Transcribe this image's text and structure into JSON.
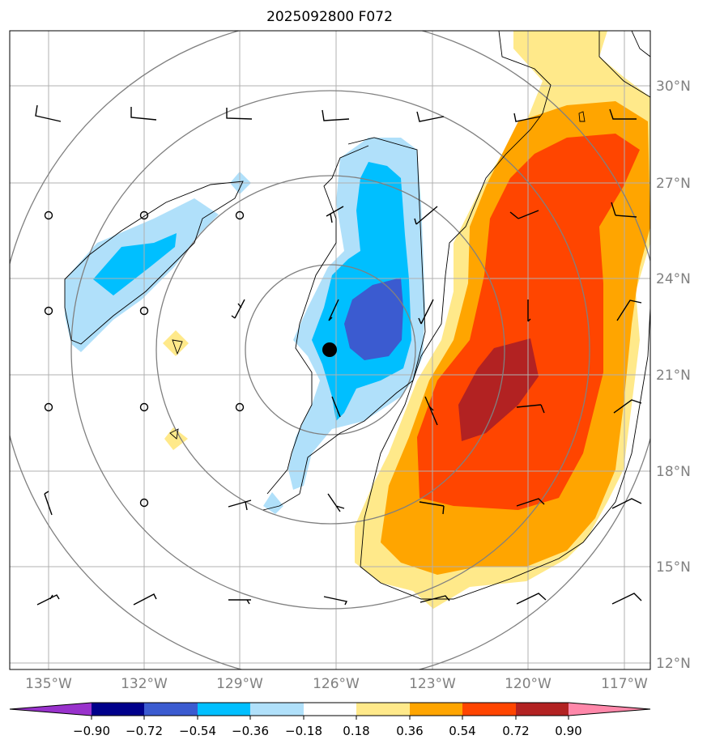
{
  "title": "2025092800 F072",
  "map": {
    "lon_labels": [
      "135°W",
      "132°W",
      "129°W",
      "126°W",
      "123°W",
      "120°W",
      "117°W"
    ],
    "lat_labels": [
      "30°N",
      "27°N",
      "24°N",
      "21°N",
      "18°N",
      "15°N",
      "12°N"
    ],
    "lon_values": [
      -135,
      -132,
      -129,
      -126,
      -123,
      -120,
      -117
    ],
    "lat_values": [
      30,
      27,
      24,
      21,
      18,
      15,
      12
    ],
    "storm_center": {
      "lon": -126.3,
      "lat": 21.8
    },
    "range_rings": 4
  },
  "colorbar": {
    "ticks": [
      "−0.90",
      "−0.72",
      "−0.54",
      "−0.36",
      "−0.18",
      "0.18",
      "0.36",
      "0.54",
      "0.72",
      "0.90"
    ],
    "colors": [
      "#9932cc",
      "#00008b",
      "#3b5bd0",
      "#00bfff",
      "#b0e0fa",
      "#ffffff",
      "#ffe98a",
      "#ffa500",
      "#ff4500",
      "#b22222",
      "#ff88aa"
    ],
    "extend": "both"
  },
  "colors": {
    "grid": "#b0b0b0",
    "ring": "#808080",
    "tick_text": "#808080"
  },
  "wind_station_rows": 6
}
